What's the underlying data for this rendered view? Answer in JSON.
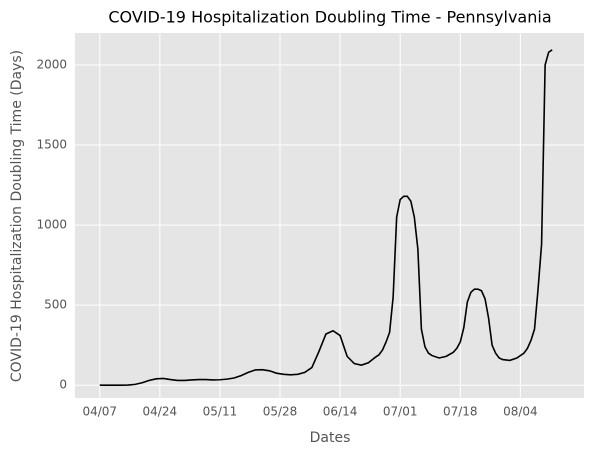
{
  "chart_data": {
    "type": "line",
    "title": "COVID-19 Hospitalization Doubling Time - Pennsylvania",
    "x_label": "Dates",
    "y_label": "COVID-19 Hospitalization Doubling Time (Days)",
    "x": [
      "04/07",
      "04/09",
      "04/11",
      "04/13",
      "04/15",
      "04/17",
      "04/19",
      "04/21",
      "04/23",
      "04/25",
      "04/27",
      "04/29",
      "05/01",
      "05/03",
      "05/05",
      "05/07",
      "05/09",
      "05/11",
      "05/13",
      "05/15",
      "05/17",
      "05/19",
      "05/21",
      "05/23",
      "05/25",
      "05/27",
      "05/29",
      "05/31",
      "06/02",
      "06/04",
      "06/06",
      "06/08",
      "06/10",
      "06/12",
      "06/14",
      "06/16",
      "06/18",
      "06/20",
      "06/22",
      "06/24",
      "06/25",
      "06/26",
      "06/27",
      "06/28",
      "06/29",
      "06/30",
      "07/01",
      "07/02",
      "07/03",
      "07/04",
      "07/05",
      "07/06",
      "07/07",
      "07/08",
      "07/09",
      "07/10",
      "07/12",
      "07/14",
      "07/16",
      "07/17",
      "07/18",
      "07/19",
      "07/20",
      "07/21",
      "07/22",
      "07/23",
      "07/24",
      "07/25",
      "07/26",
      "07/27",
      "07/28",
      "07/29",
      "07/30",
      "08/01",
      "08/03",
      "08/05",
      "08/06",
      "08/07",
      "08/08",
      "08/09",
      "08/10",
      "08/11",
      "08/12",
      "08/13"
    ],
    "series": [
      {
        "name": "Doubling Time",
        "color": "#000000",
        "values": [
          0,
          0,
          0,
          0,
          1,
          5,
          15,
          30,
          40,
          42,
          35,
          30,
          30,
          33,
          35,
          35,
          33,
          34,
          38,
          45,
          60,
          80,
          95,
          97,
          90,
          75,
          68,
          65,
          68,
          80,
          110,
          210,
          320,
          340,
          310,
          180,
          135,
          125,
          140,
          175,
          190,
          220,
          270,
          330,
          550,
          1050,
          1160,
          1180,
          1180,
          1150,
          1050,
          850,
          350,
          240,
          200,
          185,
          170,
          180,
          205,
          230,
          270,
          360,
          520,
          580,
          600,
          600,
          590,
          540,
          420,
          250,
          200,
          170,
          160,
          155,
          170,
          200,
          230,
          280,
          350,
          600,
          880,
          2000,
          2080,
          2095
        ]
      }
    ],
    "xlim": [
      "03/31",
      "08/22"
    ],
    "xticks": [
      "04/07",
      "04/24",
      "05/11",
      "05/28",
      "06/14",
      "07/01",
      "07/18",
      "08/04"
    ],
    "ylim": [
      -80,
      2200
    ],
    "yticks": [
      0,
      500,
      1000,
      1500,
      2000
    ],
    "grid": true
  }
}
